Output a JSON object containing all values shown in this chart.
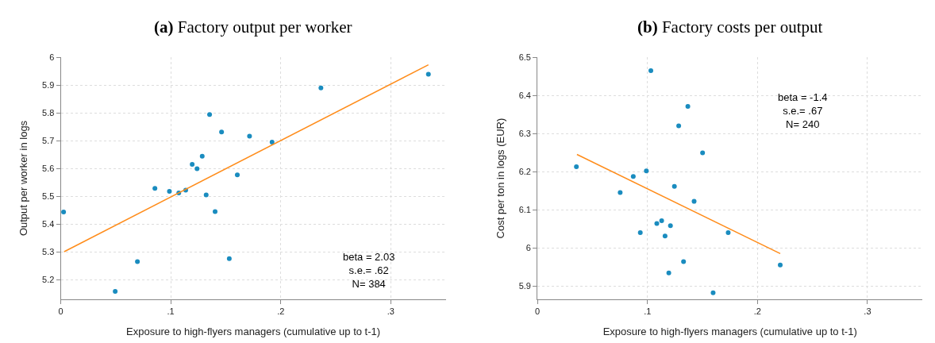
{
  "chart_data": [
    {
      "type": "scatter",
      "title": "(a) Factory output per worker",
      "xlabel": "Exposure to high-flyers managers (cumulative up to t-1)",
      "ylabel": "Output per worker in logs",
      "xlim": [
        0,
        0.35
      ],
      "ylim": [
        5.13,
        6.0
      ],
      "xticks": [
        0,
        {
          "value": 0.1,
          "label": ".1"
        },
        {
          "value": 0.2,
          "label": ".2"
        },
        {
          "value": 0.3,
          "label": ".3"
        }
      ],
      "yticks": [
        5.2,
        5.3,
        5.4,
        5.5,
        5.6,
        5.7,
        5.8,
        5.9,
        6
      ],
      "grid": true,
      "series": [
        {
          "marker": "circle",
          "color": "#1a8cbf",
          "x": [
            0.0026,
            0.0495,
            0.0697,
            0.0856,
            0.0988,
            0.1073,
            0.1136,
            0.1195,
            0.1239,
            0.1286,
            0.1322,
            0.1353,
            0.1403,
            0.1462,
            0.1532,
            0.1605,
            0.1716,
            0.1921,
            0.2365,
            0.3342
          ],
          "values": [
            5.444,
            5.158,
            5.265,
            5.529,
            5.518,
            5.512,
            5.522,
            5.615,
            5.599,
            5.644,
            5.505,
            5.794,
            5.445,
            5.731,
            5.276,
            5.577,
            5.716,
            5.695,
            5.89,
            5.939
          ]
        },
        {
          "type": "line",
          "color": "#ff8c1a",
          "x": [
            0.0031,
            0.3342
          ],
          "values": [
            5.301,
            5.973
          ]
        }
      ],
      "annotations": [
        "beta = 2.03\ns.e.= .62\nN= 384"
      ]
    },
    {
      "type": "scatter",
      "title": "(b) Factory costs per output",
      "xlabel": "Exposure to high-flyers managers (cumulative up to t-1)",
      "ylabel": "Cost per ton in logs (EUR)",
      "xlim": [
        0,
        0.35
      ],
      "ylim": [
        5.865,
        6.5
      ],
      "xticks": [
        0,
        {
          "value": 0.1,
          "label": ".1"
        },
        {
          "value": 0.2,
          "label": ".2"
        },
        {
          "value": 0.3,
          "label": ".3"
        }
      ],
      "yticks": [
        5.9,
        6,
        6.1,
        6.2,
        6.3,
        6.4,
        6.5
      ],
      "grid": true,
      "series": [
        {
          "marker": "circle",
          "color": "#1a8cbf",
          "x": [
            0.0354,
            0.0752,
            0.0871,
            0.0935,
            0.099,
            0.1031,
            0.1085,
            0.1129,
            0.116,
            0.1194,
            0.1209,
            0.1245,
            0.1284,
            0.1328,
            0.1367,
            0.1424,
            0.1501,
            0.1597,
            0.1734,
            0.2207
          ],
          "values": [
            6.213,
            6.145,
            6.187,
            6.04,
            6.202,
            6.465,
            6.064,
            6.071,
            6.031,
            5.934,
            6.058,
            6.161,
            6.32,
            5.964,
            6.371,
            6.122,
            6.249,
            5.882,
            6.04,
            5.955
          ]
        },
        {
          "type": "line",
          "color": "#ff8c1a",
          "x": [
            0.0359,
            0.2207
          ],
          "values": [
            6.245,
            5.985
          ]
        }
      ],
      "annotations": [
        "beta = -1.4\ns.e.= .67\nN= 240"
      ]
    }
  ]
}
